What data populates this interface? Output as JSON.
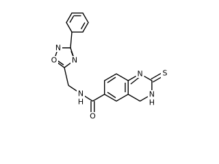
{
  "atoms": {
    "oxadiazole_o": "O",
    "oxadiazole_n2": "N",
    "oxadiazole_n4": "N",
    "amide_n": "N",
    "amide_h": "H",
    "carbonyl_o": "O",
    "ring_n1": "N",
    "ring_n3": "N",
    "ring_h": "H",
    "thione_s": "S"
  }
}
